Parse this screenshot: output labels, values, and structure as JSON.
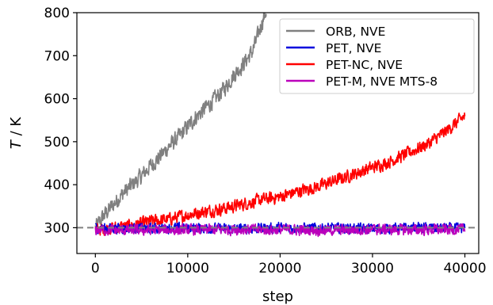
{
  "chart_data": {
    "type": "line",
    "xlabel": "step",
    "ylabel_italic": "T",
    "ylabel_unit": " / K",
    "xlim": [
      -2000,
      41500
    ],
    "ylim": [
      240,
      800
    ],
    "xticks": [
      0,
      10000,
      20000,
      30000,
      40000
    ],
    "yticks": [
      300,
      400,
      500,
      600,
      700,
      800
    ],
    "grid": false,
    "legend_position": "top-right",
    "reference_line": {
      "y": 300,
      "style": "dashed",
      "color": "#808080"
    },
    "series": [
      {
        "name": "ORB, NVE",
        "color": "#808080",
        "x": [
          0,
          1000,
          2000,
          3000,
          4000,
          5000,
          6000,
          7000,
          8000,
          9000,
          10000,
          11000,
          12000,
          13000,
          14000,
          15000,
          16000,
          17000,
          17500,
          18000,
          18500
        ],
        "y": [
          300,
          330,
          355,
          380,
          400,
          420,
          445,
          465,
          490,
          510,
          535,
          560,
          580,
          600,
          625,
          655,
          680,
          710,
          740,
          775,
          805
        ]
      },
      {
        "name": "PET, NVE",
        "color": "#0000dd",
        "x": [
          0,
          5000,
          10000,
          15000,
          20000,
          25000,
          30000,
          35000,
          40000
        ],
        "y": [
          300,
          298,
          300,
          297,
          300,
          299,
          298,
          300,
          298
        ]
      },
      {
        "name": "PET-NC, NVE",
        "color": "#ff0000",
        "x": [
          0,
          2000,
          4000,
          6000,
          8000,
          10000,
          12000,
          14000,
          16000,
          18000,
          20000,
          22000,
          24000,
          26000,
          28000,
          30000,
          32000,
          34000,
          36000,
          38000,
          40000
        ],
        "y": [
          295,
          300,
          305,
          315,
          320,
          330,
          338,
          345,
          355,
          365,
          372,
          385,
          395,
          410,
          425,
          440,
          455,
          475,
          495,
          525,
          560
        ]
      },
      {
        "name": "PET-M, NVE MTS-8",
        "color": "#bb00bb",
        "x": [
          0,
          5000,
          10000,
          15000,
          20000,
          25000,
          30000,
          35000,
          40000
        ],
        "y": [
          295,
          294,
          295,
          296,
          295,
          294,
          296,
          295,
          296
        ]
      }
    ]
  },
  "colors": {
    "axis": "#000000",
    "legend_border": "#cccccc"
  }
}
